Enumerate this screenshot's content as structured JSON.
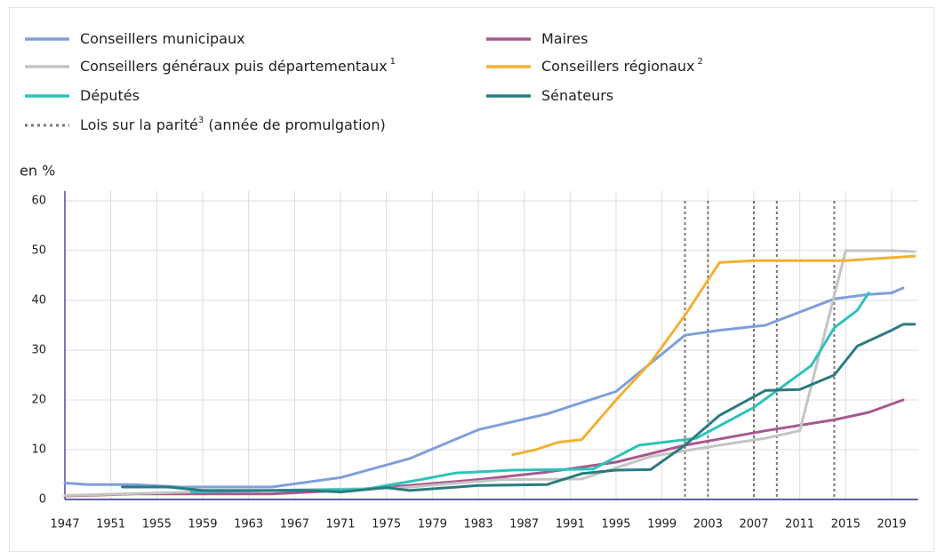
{
  "chart_data": {
    "type": "line",
    "y_label": "en %",
    "xlim": [
      1947,
      2021.3
    ],
    "ylim": [
      0,
      62
    ],
    "xticks": [
      1947,
      1951,
      1955,
      1959,
      1963,
      1967,
      1971,
      1975,
      1979,
      1983,
      1987,
      1991,
      1995,
      1999,
      2003,
      2007,
      2011,
      2015,
      2019
    ],
    "yticks": [
      0,
      10,
      20,
      30,
      40,
      50,
      60
    ],
    "grid": true,
    "series": [
      {
        "name": "Conseillers municipaux",
        "color": "#7e9fdc",
        "x": [
          1947,
          1949,
          1953,
          1957,
          1965,
          1971,
          1977,
          1983,
          1986,
          1989,
          1995,
          2001,
          2004,
          2008,
          2014,
          2017,
          2019,
          2020
        ],
        "values": [
          3.3,
          3.0,
          3.0,
          2.5,
          2.5,
          4.4,
          8.2,
          14.0,
          15.6,
          17.2,
          21.7,
          33.0,
          34.0,
          35.0,
          40.3,
          41.2,
          41.5,
          42.5
        ]
      },
      {
        "name": "Maires",
        "color": "#a8588f",
        "x": [
          1947,
          1953,
          1959,
          1965,
          1971,
          1977,
          1983,
          1989,
          1995,
          2001,
          2008,
          2014,
          2017,
          2020
        ],
        "values": [
          0.7,
          1.1,
          1.1,
          1.1,
          1.8,
          2.8,
          4.0,
          5.5,
          7.5,
          10.9,
          13.8,
          16.0,
          17.5,
          20.0
        ]
      },
      {
        "name": "Conseillers généraux puis départementaux",
        "name_note": "1",
        "color": "#c4c4c4",
        "x": [
          1947,
          1958,
          1976,
          1985,
          1992,
          1998,
          2001,
          2004,
          2008,
          2011,
          2015,
          2019,
          2021
        ],
        "values": [
          0.8,
          1.5,
          2.3,
          4.0,
          4.1,
          8.6,
          9.8,
          10.9,
          12.3,
          13.8,
          50.0,
          50.0,
          49.8
        ]
      },
      {
        "name": "Conseillers régionaux",
        "name_note": "2",
        "color": "#f2b134",
        "x": [
          1986,
          1988,
          1990,
          1992,
          1995,
          1998,
          2001,
          2004,
          2007,
          2015,
          2017,
          2021
        ],
        "values": [
          9.0,
          10.0,
          11.5,
          12.0,
          20.0,
          27.5,
          37.0,
          47.6,
          48.0,
          48.0,
          48.3,
          48.9
        ]
      },
      {
        "name": "Députés",
        "color": "#2dc2b8",
        "x": [
          1958,
          1962,
          1967,
          1973,
          1978,
          1981,
          1986,
          1993,
          1997,
          2002,
          2007,
          2012,
          2014,
          2016,
          2017
        ],
        "values": [
          1.5,
          1.7,
          1.9,
          2.0,
          4.0,
          5.3,
          5.9,
          6.1,
          10.9,
          12.3,
          18.5,
          26.9,
          34.5,
          38.0,
          41.5
        ]
      },
      {
        "name": "Sénateurs",
        "color": "#2a7b80",
        "x": [
          1952,
          1956,
          1959,
          1968,
          1971,
          1975,
          1977,
          1983,
          1989,
          1992,
          1995,
          1998,
          2001,
          2004,
          2008,
          2011,
          2014,
          2016,
          2019,
          2020,
          2021
        ],
        "values": [
          2.5,
          2.5,
          1.8,
          1.8,
          1.5,
          2.4,
          1.8,
          2.8,
          3.0,
          5.2,
          5.9,
          6.0,
          10.9,
          16.9,
          21.9,
          22.1,
          25.0,
          30.8,
          34.0,
          35.2,
          35.2
        ]
      }
    ],
    "laws": {
      "name": "Lois sur la parité",
      "name_note": "3",
      "name_suffix": " (année de promulgation)",
      "color": "#777777",
      "x": [
        2001,
        2003,
        2007,
        2009,
        2014
      ]
    }
  }
}
